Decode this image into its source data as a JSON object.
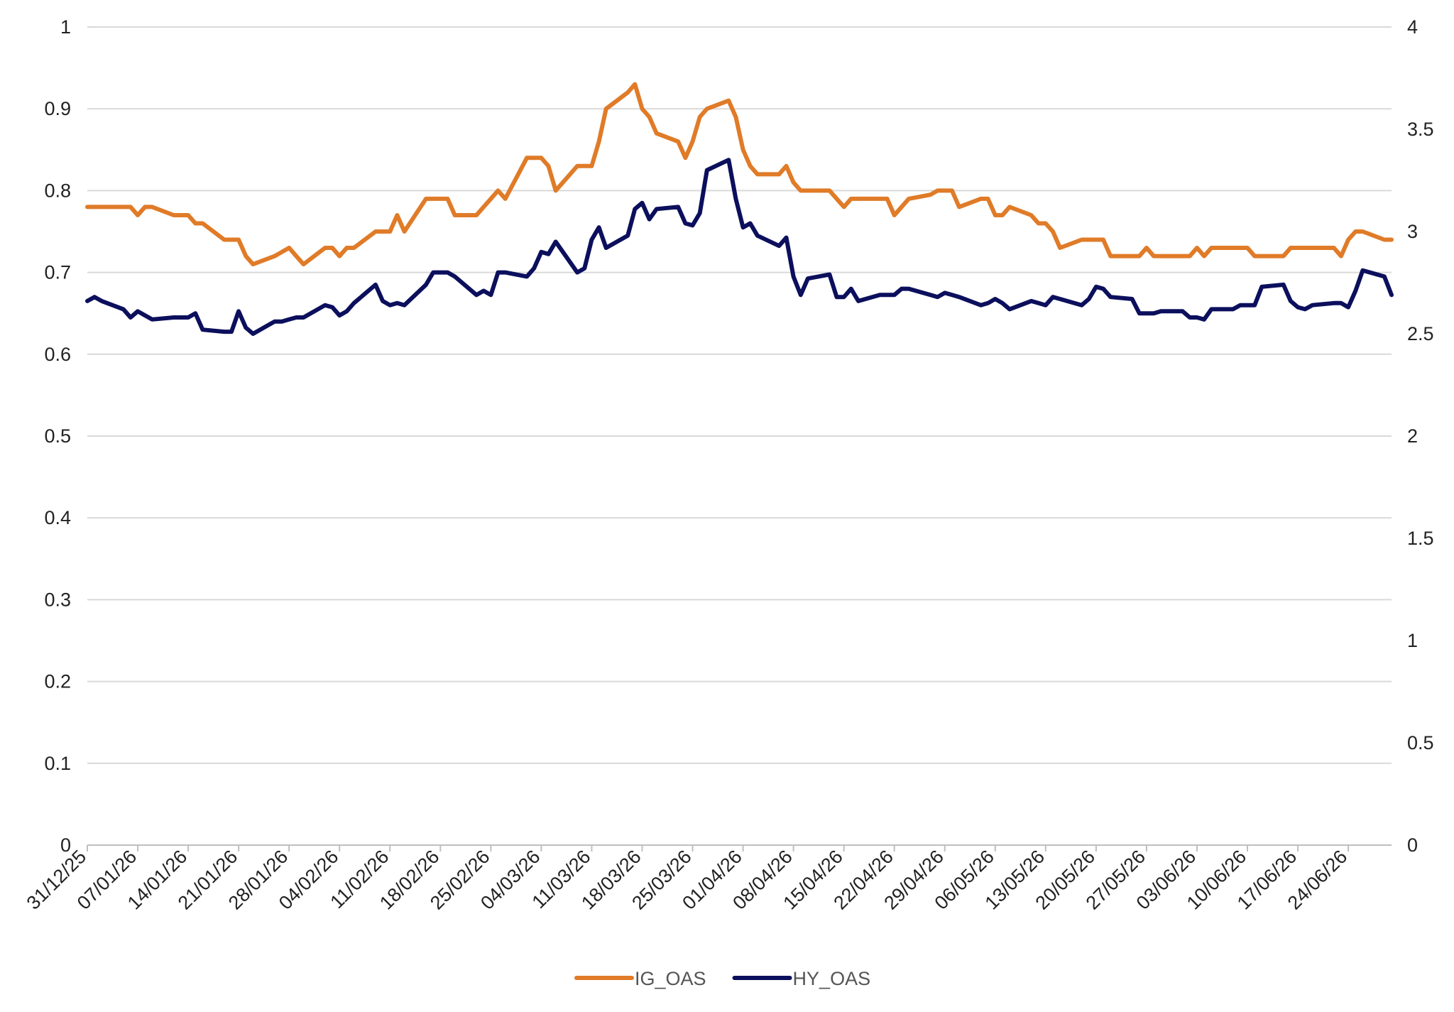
{
  "chart_data": {
    "type": "line",
    "grid": true,
    "legend_position": "bottom",
    "x_tick_labels": [
      "31/12/25",
      "07/01/26",
      "14/01/26",
      "21/01/26",
      "28/01/26",
      "04/02/26",
      "11/02/26",
      "18/02/26",
      "25/02/26",
      "04/03/26",
      "11/03/26",
      "18/03/26",
      "25/03/26",
      "01/04/26",
      "08/04/26",
      "15/04/26",
      "22/04/26",
      "29/04/26",
      "06/05/26",
      "13/05/26",
      "20/05/26",
      "27/05/26",
      "03/06/26",
      "10/06/26",
      "17/06/26",
      "24/06/26"
    ],
    "x_range": [
      "31/12/25",
      "30/06/26"
    ],
    "y_left": {
      "range": [
        0,
        1
      ],
      "ticks": [
        "0",
        "0.1",
        "0.2",
        "0.3",
        "0.4",
        "0.5",
        "0.6",
        "0.7",
        "0.8",
        "0.9",
        "1"
      ]
    },
    "y_right": {
      "range": [
        0,
        4
      ],
      "ticks": [
        "0",
        "0.5",
        "1",
        "1.5",
        "2",
        "2.5",
        "3",
        "3.5",
        "4"
      ]
    },
    "series": [
      {
        "name": "IG_OAS",
        "axis": "left",
        "color": "#E07B28",
        "points": [
          [
            "31/12/25",
            0.78
          ],
          [
            "01/01/26",
            0.78
          ],
          [
            "02/01/26",
            0.78
          ],
          [
            "05/01/26",
            0.78
          ],
          [
            "06/01/26",
            0.78
          ],
          [
            "07/01/26",
            0.77
          ],
          [
            "08/01/26",
            0.78
          ],
          [
            "09/01/26",
            0.78
          ],
          [
            "12/01/26",
            0.77
          ],
          [
            "13/01/26",
            0.77
          ],
          [
            "14/01/26",
            0.77
          ],
          [
            "15/01/26",
            0.76
          ],
          [
            "16/01/26",
            0.76
          ],
          [
            "19/01/26",
            0.74
          ],
          [
            "20/01/26",
            0.74
          ],
          [
            "21/01/26",
            0.74
          ],
          [
            "22/01/26",
            0.72
          ],
          [
            "23/01/26",
            0.71
          ],
          [
            "26/01/26",
            0.72
          ],
          [
            "27/01/26",
            0.725
          ],
          [
            "28/01/26",
            0.73
          ],
          [
            "29/01/26",
            0.72
          ],
          [
            "30/01/26",
            0.71
          ],
          [
            "02/02/26",
            0.73
          ],
          [
            "03/02/26",
            0.73
          ],
          [
            "04/02/26",
            0.72
          ],
          [
            "05/02/26",
            0.73
          ],
          [
            "06/02/26",
            0.73
          ],
          [
            "09/02/26",
            0.75
          ],
          [
            "10/02/26",
            0.75
          ],
          [
            "11/02/26",
            0.75
          ],
          [
            "12/02/26",
            0.77
          ],
          [
            "13/02/26",
            0.75
          ],
          [
            "16/02/26",
            0.79
          ],
          [
            "17/02/26",
            0.79
          ],
          [
            "18/02/26",
            0.79
          ],
          [
            "19/02/26",
            0.79
          ],
          [
            "20/02/26",
            0.77
          ],
          [
            "23/02/26",
            0.77
          ],
          [
            "24/02/26",
            0.78
          ],
          [
            "25/02/26",
            0.79
          ],
          [
            "26/02/26",
            0.8
          ],
          [
            "27/02/26",
            0.79
          ],
          [
            "02/03/26",
            0.84
          ],
          [
            "03/03/26",
            0.84
          ],
          [
            "04/03/26",
            0.84
          ],
          [
            "05/03/26",
            0.83
          ],
          [
            "06/03/26",
            0.8
          ],
          [
            "09/03/26",
            0.83
          ],
          [
            "10/03/26",
            0.83
          ],
          [
            "11/03/26",
            0.83
          ],
          [
            "12/03/26",
            0.86
          ],
          [
            "13/03/26",
            0.9
          ],
          [
            "16/03/26",
            0.92
          ],
          [
            "17/03/26",
            0.93
          ],
          [
            "18/03/26",
            0.9
          ],
          [
            "19/03/26",
            0.89
          ],
          [
            "20/03/26",
            0.87
          ],
          [
            "23/03/26",
            0.86
          ],
          [
            "24/03/26",
            0.84
          ],
          [
            "25/03/26",
            0.86
          ],
          [
            "26/03/26",
            0.89
          ],
          [
            "27/03/26",
            0.9
          ],
          [
            "30/03/26",
            0.91
          ],
          [
            "31/03/26",
            0.89
          ],
          [
            "01/04/26",
            0.85
          ],
          [
            "02/04/26",
            0.83
          ],
          [
            "03/04/26",
            0.82
          ],
          [
            "06/04/26",
            0.82
          ],
          [
            "07/04/26",
            0.83
          ],
          [
            "08/04/26",
            0.81
          ],
          [
            "09/04/26",
            0.8
          ],
          [
            "10/04/26",
            0.8
          ],
          [
            "13/04/26",
            0.8
          ],
          [
            "14/04/26",
            0.79
          ],
          [
            "15/04/26",
            0.78
          ],
          [
            "16/04/26",
            0.79
          ],
          [
            "17/04/26",
            0.79
          ],
          [
            "20/04/26",
            0.79
          ],
          [
            "21/04/26",
            0.79
          ],
          [
            "22/04/26",
            0.77
          ],
          [
            "23/04/26",
            0.78
          ],
          [
            "24/04/26",
            0.79
          ],
          [
            "27/04/26",
            0.795
          ],
          [
            "28/04/26",
            0.8
          ],
          [
            "29/04/26",
            0.8
          ],
          [
            "30/04/26",
            0.8
          ],
          [
            "01/05/26",
            0.78
          ],
          [
            "04/05/26",
            0.79
          ],
          [
            "05/05/26",
            0.79
          ],
          [
            "06/05/26",
            0.77
          ],
          [
            "07/05/26",
            0.77
          ],
          [
            "08/05/26",
            0.78
          ],
          [
            "11/05/26",
            0.77
          ],
          [
            "12/05/26",
            0.76
          ],
          [
            "13/05/26",
            0.76
          ],
          [
            "14/05/26",
            0.75
          ],
          [
            "15/05/26",
            0.73
          ],
          [
            "18/05/26",
            0.74
          ],
          [
            "19/05/26",
            0.74
          ],
          [
            "20/05/26",
            0.74
          ],
          [
            "21/05/26",
            0.74
          ],
          [
            "22/05/26",
            0.72
          ],
          [
            "25/05/26",
            0.72
          ],
          [
            "26/05/26",
            0.72
          ],
          [
            "27/05/26",
            0.73
          ],
          [
            "28/05/26",
            0.72
          ],
          [
            "29/05/26",
            0.72
          ],
          [
            "01/06/26",
            0.72
          ],
          [
            "02/06/26",
            0.72
          ],
          [
            "03/06/26",
            0.73
          ],
          [
            "04/06/26",
            0.72
          ],
          [
            "05/06/26",
            0.73
          ],
          [
            "08/06/26",
            0.73
          ],
          [
            "09/06/26",
            0.73
          ],
          [
            "10/06/26",
            0.73
          ],
          [
            "11/06/26",
            0.72
          ],
          [
            "12/06/26",
            0.72
          ],
          [
            "15/06/26",
            0.72
          ],
          [
            "16/06/26",
            0.73
          ],
          [
            "17/06/26",
            0.73
          ],
          [
            "18/06/26",
            0.73
          ],
          [
            "19/06/26",
            0.73
          ],
          [
            "22/06/26",
            0.73
          ],
          [
            "23/06/26",
            0.72
          ],
          [
            "24/06/26",
            0.74
          ],
          [
            "25/06/26",
            0.75
          ],
          [
            "26/06/26",
            0.75
          ],
          [
            "29/06/26",
            0.74
          ],
          [
            "30/06/26",
            0.74
          ]
        ]
      },
      {
        "name": "HY_OAS",
        "axis": "right",
        "color": "#0B0F5C",
        "points": [
          [
            "31/12/25",
            2.66
          ],
          [
            "01/01/26",
            2.68
          ],
          [
            "02/01/26",
            2.66
          ],
          [
            "05/01/26",
            2.62
          ],
          [
            "06/01/26",
            2.58
          ],
          [
            "07/01/26",
            2.61
          ],
          [
            "08/01/26",
            2.59
          ],
          [
            "09/01/26",
            2.57
          ],
          [
            "12/01/26",
            2.58
          ],
          [
            "13/01/26",
            2.58
          ],
          [
            "14/01/26",
            2.58
          ],
          [
            "15/01/26",
            2.6
          ],
          [
            "16/01/26",
            2.52
          ],
          [
            "19/01/26",
            2.51
          ],
          [
            "20/01/26",
            2.51
          ],
          [
            "21/01/26",
            2.61
          ],
          [
            "22/01/26",
            2.53
          ],
          [
            "23/01/26",
            2.5
          ],
          [
            "26/01/26",
            2.56
          ],
          [
            "27/01/26",
            2.56
          ],
          [
            "28/01/26",
            2.57
          ],
          [
            "29/01/26",
            2.58
          ],
          [
            "30/01/26",
            2.58
          ],
          [
            "02/02/26",
            2.64
          ],
          [
            "03/02/26",
            2.63
          ],
          [
            "04/02/26",
            2.59
          ],
          [
            "05/02/26",
            2.61
          ],
          [
            "06/02/26",
            2.65
          ],
          [
            "09/02/26",
            2.74
          ],
          [
            "10/02/26",
            2.66
          ],
          [
            "11/02/26",
            2.64
          ],
          [
            "12/02/26",
            2.65
          ],
          [
            "13/02/26",
            2.64
          ],
          [
            "16/02/26",
            2.74
          ],
          [
            "17/02/26",
            2.8
          ],
          [
            "18/02/26",
            2.8
          ],
          [
            "19/02/26",
            2.8
          ],
          [
            "20/02/26",
            2.78
          ],
          [
            "23/02/26",
            2.69
          ],
          [
            "24/02/26",
            2.71
          ],
          [
            "25/02/26",
            2.69
          ],
          [
            "26/02/26",
            2.8
          ],
          [
            "27/02/26",
            2.8
          ],
          [
            "02/03/26",
            2.78
          ],
          [
            "03/03/26",
            2.82
          ],
          [
            "04/03/26",
            2.9
          ],
          [
            "05/03/26",
            2.89
          ],
          [
            "06/03/26",
            2.95
          ],
          [
            "09/03/26",
            2.8
          ],
          [
            "10/03/26",
            2.82
          ],
          [
            "11/03/26",
            2.96
          ],
          [
            "12/03/26",
            3.02
          ],
          [
            "13/03/26",
            2.92
          ],
          [
            "16/03/26",
            2.98
          ],
          [
            "17/03/26",
            3.11
          ],
          [
            "18/03/26",
            3.14
          ],
          [
            "19/03/26",
            3.06
          ],
          [
            "20/03/26",
            3.11
          ],
          [
            "23/03/26",
            3.12
          ],
          [
            "24/03/26",
            3.04
          ],
          [
            "25/03/26",
            3.03
          ],
          [
            "26/03/26",
            3.09
          ],
          [
            "27/03/26",
            3.3
          ],
          [
            "30/03/26",
            3.35
          ],
          [
            "31/03/26",
            3.16
          ],
          [
            "01/04/26",
            3.02
          ],
          [
            "02/04/26",
            3.04
          ],
          [
            "03/04/26",
            2.98
          ],
          [
            "06/04/26",
            2.93
          ],
          [
            "07/04/26",
            2.97
          ],
          [
            "08/04/26",
            2.78
          ],
          [
            "09/04/26",
            2.69
          ],
          [
            "10/04/26",
            2.77
          ],
          [
            "13/04/26",
            2.79
          ],
          [
            "14/04/26",
            2.68
          ],
          [
            "15/04/26",
            2.68
          ],
          [
            "16/04/26",
            2.72
          ],
          [
            "17/04/26",
            2.66
          ],
          [
            "20/04/26",
            2.69
          ],
          [
            "21/04/26",
            2.69
          ],
          [
            "22/04/26",
            2.69
          ],
          [
            "23/04/26",
            2.72
          ],
          [
            "24/04/26",
            2.72
          ],
          [
            "27/04/26",
            2.69
          ],
          [
            "28/04/26",
            2.68
          ],
          [
            "29/04/26",
            2.7
          ],
          [
            "30/04/26",
            2.69
          ],
          [
            "01/05/26",
            2.68
          ],
          [
            "04/05/26",
            2.64
          ],
          [
            "05/05/26",
            2.65
          ],
          [
            "06/05/26",
            2.67
          ],
          [
            "07/05/26",
            2.65
          ],
          [
            "08/05/26",
            2.62
          ],
          [
            "11/05/26",
            2.66
          ],
          [
            "12/05/26",
            2.65
          ],
          [
            "13/05/26",
            2.64
          ],
          [
            "14/05/26",
            2.68
          ],
          [
            "15/05/26",
            2.67
          ],
          [
            "18/05/26",
            2.64
          ],
          [
            "19/05/26",
            2.67
          ],
          [
            "20/05/26",
            2.73
          ],
          [
            "21/05/26",
            2.72
          ],
          [
            "22/05/26",
            2.68
          ],
          [
            "25/05/26",
            2.67
          ],
          [
            "26/05/26",
            2.6
          ],
          [
            "27/05/26",
            2.6
          ],
          [
            "28/05/26",
            2.6
          ],
          [
            "29/05/26",
            2.61
          ],
          [
            "01/06/26",
            2.61
          ],
          [
            "02/06/26",
            2.58
          ],
          [
            "03/06/26",
            2.58
          ],
          [
            "04/06/26",
            2.57
          ],
          [
            "05/06/26",
            2.62
          ],
          [
            "08/06/26",
            2.62
          ],
          [
            "09/06/26",
            2.64
          ],
          [
            "10/06/26",
            2.64
          ],
          [
            "11/06/26",
            2.64
          ],
          [
            "12/06/26",
            2.73
          ],
          [
            "15/06/26",
            2.74
          ],
          [
            "16/06/26",
            2.66
          ],
          [
            "17/06/26",
            2.63
          ],
          [
            "18/06/26",
            2.62
          ],
          [
            "19/06/26",
            2.64
          ],
          [
            "22/06/26",
            2.65
          ],
          [
            "23/06/26",
            2.65
          ],
          [
            "24/06/26",
            2.63
          ],
          [
            "25/06/26",
            2.71
          ],
          [
            "26/06/26",
            2.81
          ],
          [
            "29/06/26",
            2.78
          ],
          [
            "30/06/26",
            2.69
          ]
        ]
      }
    ]
  }
}
